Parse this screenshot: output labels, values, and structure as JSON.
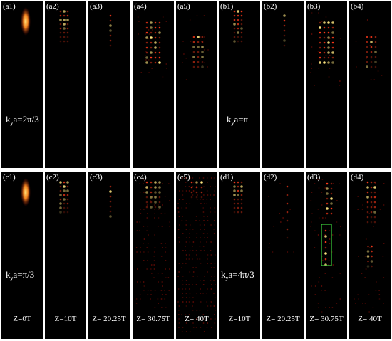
{
  "colors": {
    "background": "#000000",
    "peak": "#ffe680",
    "mid": "#ff3a1a",
    "low": "#8a0f07",
    "box": "#3cd23c",
    "text": "#ffffff"
  },
  "top_row": {
    "panels": [
      {
        "label": "(a1)",
        "pattern": "source"
      },
      {
        "label": "(a2)",
        "pattern": "short-column"
      },
      {
        "label": "(a3)",
        "pattern": "thin-column"
      },
      {
        "label": "(a4)",
        "pattern": "wide-column"
      },
      {
        "label": "(a5)",
        "pattern": "low-column"
      },
      {
        "label": "(b1)",
        "pattern": "short-column"
      },
      {
        "label": "(b2)",
        "pattern": "thin-column"
      },
      {
        "label": "(b3)",
        "pattern": "wide-column"
      },
      {
        "label": "(b4)",
        "pattern": "low-column"
      }
    ],
    "ky_labels": {
      "a": {
        "k": "k",
        "sub": "y",
        "rest": "a=2π/3"
      },
      "b": {
        "k": "k",
        "sub": "y",
        "rest": "a=π"
      }
    }
  },
  "bottom_row": {
    "panels": [
      {
        "label": "(c1)",
        "pattern": "source",
        "z": "Z=0T"
      },
      {
        "label": "(c2)",
        "pattern": "short-column",
        "z": "Z=10T"
      },
      {
        "label": "(c3)",
        "pattern": "thin-column",
        "z": "Z= 20.25T"
      },
      {
        "label": "(c4)",
        "pattern": "spread",
        "z": "Z= 30.75T"
      },
      {
        "label": "(c5)",
        "pattern": "full-spread",
        "z": "Z= 40T"
      },
      {
        "label": "(d1)",
        "pattern": "short-column",
        "z": "Z=10T"
      },
      {
        "label": "(d2)",
        "pattern": "sparse",
        "z": "Z= 20.25T"
      },
      {
        "label": "(d3)",
        "pattern": "boxed",
        "z": "Z= 30.75T"
      },
      {
        "label": "(d4)",
        "pattern": "split",
        "z": "Z= 40T"
      }
    ],
    "ky_labels": {
      "c": {
        "k": "k",
        "sub": "y",
        "rest": "a=π/3"
      },
      "d": {
        "k": "k",
        "sub": "y",
        "rest": "a=4π/3"
      }
    }
  }
}
